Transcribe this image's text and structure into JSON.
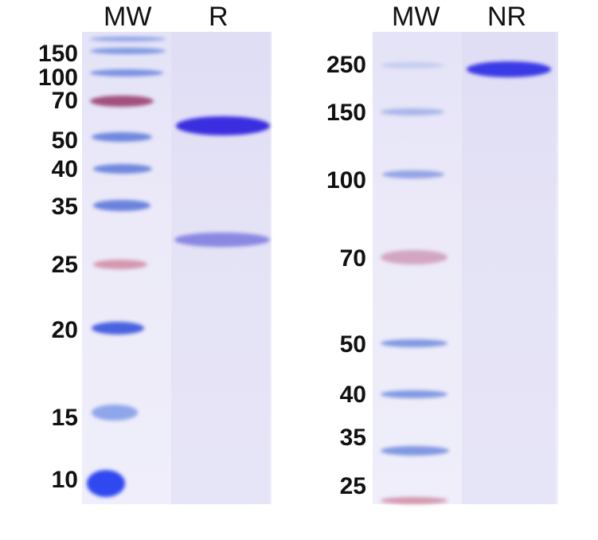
{
  "left_gel": {
    "lane_labels": [
      "MW",
      "R"
    ],
    "marker_labels": [
      "150",
      "100",
      "70",
      "50",
      "40",
      "35",
      "25",
      "20",
      "15",
      "10"
    ]
  },
  "right_gel": {
    "lane_labels": [
      "MW",
      "NR"
    ],
    "marker_labels": [
      "250",
      "150",
      "100",
      "70",
      "50",
      "40",
      "35",
      "25"
    ]
  },
  "colors": {
    "stain": "#3a2ee0",
    "marker_blue": "#6a86de",
    "marker_red": "#b0507a"
  }
}
